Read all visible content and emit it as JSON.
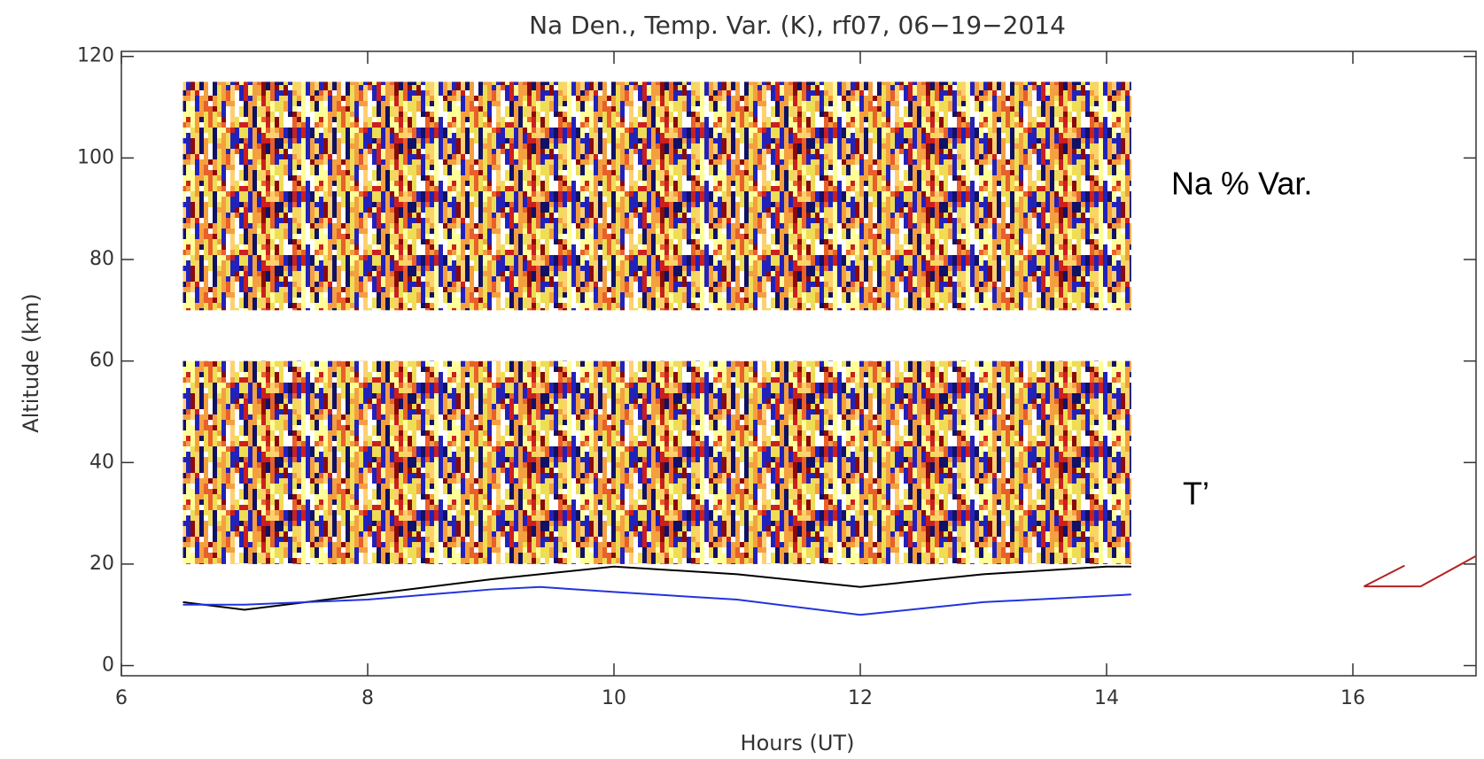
{
  "chart_data": {
    "type": "heatmap-lines",
    "title": "Na Den., Temp. Var. (K), rf07, 06−19−2014",
    "x_label": "Hours (UT)",
    "y_label": "Altitude (km)",
    "annotations": [
      "Na % Var.",
      "T’"
    ],
    "xlim": [
      6,
      17
    ],
    "ylim": [
      -2,
      121
    ],
    "xticks": [
      6,
      8,
      10,
      12,
      14,
      16
    ],
    "yticks": [
      0,
      20,
      40,
      60,
      80,
      100,
      120
    ],
    "heat_x": [
      6.5,
      14.2
    ],
    "heat_y": [
      [
        70,
        115
      ],
      [
        20,
        60
      ]
    ],
    "series": [
      {
        "color": "#000000",
        "x": [
          6.5,
          7,
          8,
          9,
          10,
          11,
          12,
          13,
          14,
          14.2
        ],
        "y": [
          12.5,
          11,
          14,
          17,
          19.5,
          18,
          15.5,
          18,
          19.5,
          19.5
        ]
      },
      {
        "color": "#2233dd",
        "x": [
          6.5,
          7,
          8,
          9,
          9.4,
          10,
          11,
          12,
          13,
          14.2
        ],
        "y": [
          12,
          12,
          13,
          15,
          15.5,
          14.5,
          13,
          10,
          12.5,
          14
        ]
      },
      {
        "color": "#b22222",
        "x": [
          16.42,
          16.09,
          16.55,
          17
        ],
        "y": [
          19.7,
          15.6,
          15.6,
          21.6
        ]
      }
    ]
  }
}
